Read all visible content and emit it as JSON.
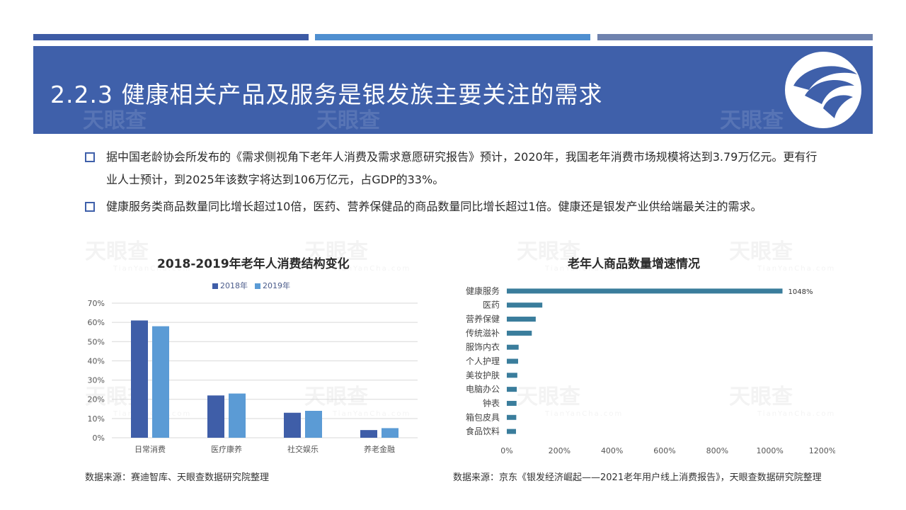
{
  "slide": {
    "title": "2.2.3 健康相关产品及服务是银发族主要关注的需求",
    "watermark": "天眼查",
    "watermark_sub": "TianYanCha.com",
    "colors": {
      "banner": "#3f60aa",
      "bar_2018": "#3f5ea8",
      "bar_2019": "#5b9bd5",
      "bar_right": "#3a7d9c"
    }
  },
  "bullets": [
    "据中国老龄协会所发布的《需求侧视角下老年人消费及需求意愿研究报告》预计，2020年，我国老年消费市场规模将达到3.79万亿元。更有行业人士预计，到2025年该数字将达到106万亿元，占GDP的33%。",
    "健康服务类商品数量同比增长超过10倍，医药、营养保健品的商品数量同比增长超过1倍。健康还是银发产业供给端最关注的需求。"
  ],
  "left_chart": {
    "title": "2018-2019年老年人消费结构变化",
    "source": "数据来源：赛迪智库、天眼查数据研究院整理"
  },
  "right_chart": {
    "title": "老年人商品数量增速情况",
    "source": "数据来源：京东《银发经济崛起——2021老年用户线上消费报告》，天眼查数据研究院整理"
  },
  "chart_data": [
    {
      "type": "bar",
      "title": "2018-2019年老年人消费结构变化",
      "categories": [
        "日常消费",
        "医疗康养",
        "社交娱乐",
        "养老金融"
      ],
      "series": [
        {
          "name": "2018年",
          "values": [
            61,
            22,
            13,
            4
          ]
        },
        {
          "name": "2019年",
          "values": [
            58,
            23,
            14,
            5
          ]
        }
      ],
      "ylim": [
        0,
        70
      ],
      "yticks": [
        "0%",
        "10%",
        "20%",
        "30%",
        "40%",
        "50%",
        "60%",
        "70%"
      ],
      "grid": true,
      "legend": "top"
    },
    {
      "type": "bar",
      "orientation": "horizontal",
      "title": "老年人商品数量增速情况",
      "categories": [
        "健康服务",
        "医药",
        "营养保健",
        "传统滋补",
        "服饰内衣",
        "个人护理",
        "美妆护肤",
        "电脑办公",
        "钟表",
        "箱包皮具",
        "食品饮料"
      ],
      "values": [
        1048,
        135,
        110,
        95,
        45,
        43,
        40,
        38,
        37,
        36,
        35
      ],
      "data_labels": [
        "1048%"
      ],
      "xlim": [
        0,
        1200
      ],
      "xticks": [
        "0%",
        "200%",
        "400%",
        "600%",
        "800%",
        "1000%",
        "1200%"
      ],
      "grid": false
    }
  ]
}
